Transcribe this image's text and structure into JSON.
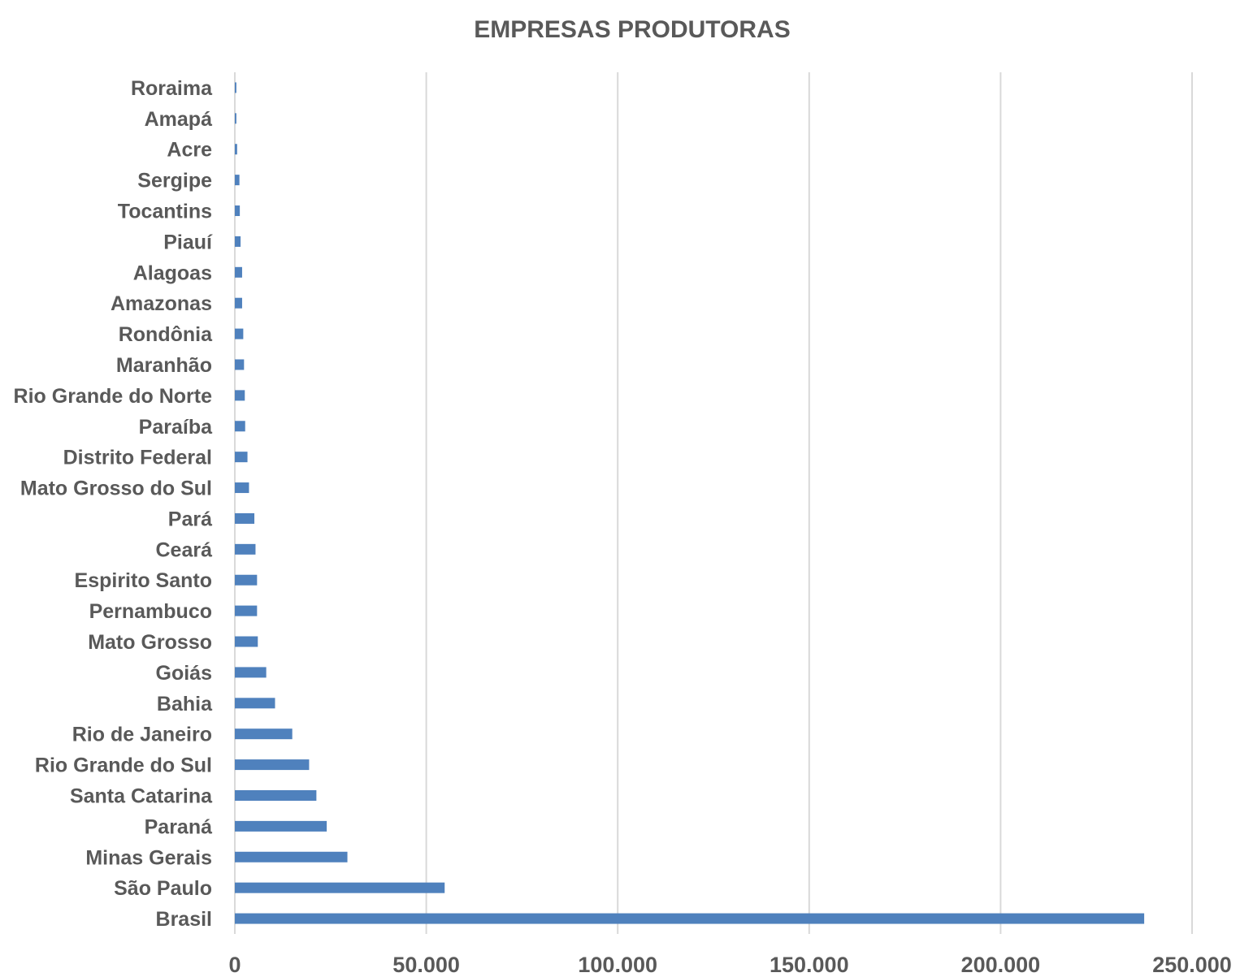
{
  "chart_data": {
    "type": "bar",
    "orientation": "horizontal",
    "title": "EMPRESAS PRODUTORAS",
    "xlabel": "",
    "ylabel": "",
    "categories": [
      "Brasil",
      "São Paulo",
      "Minas Gerais",
      "Paraná",
      "Santa Catarina",
      "Rio Grande do Sul",
      "Rio de Janeiro",
      "Bahia",
      "Goiás",
      "Mato Grosso",
      "Pernambuco",
      "Espirito Santo",
      "Ceará",
      "Pará",
      "Mato Grosso do Sul",
      "Distrito Federal",
      "Paraíba",
      "Rio Grande do Norte",
      "Maranhão",
      "Rondônia",
      "Amazonas",
      "Alagoas",
      "Piauí",
      "Tocantins",
      "Sergipe",
      "Acre",
      "Amapá",
      "Roraima"
    ],
    "values": [
      237500,
      54800,
      29400,
      24000,
      21300,
      19400,
      15000,
      10500,
      8200,
      6000,
      5800,
      5800,
      5400,
      5100,
      3700,
      3300,
      2700,
      2600,
      2400,
      2200,
      1900,
      1900,
      1500,
      1300,
      1200,
      600,
      400,
      400
    ],
    "xlim": [
      0,
      250000
    ],
    "xticks": [
      "0",
      "50.000",
      "100.000",
      "150.000",
      "200.000",
      "250.000"
    ],
    "xtick_values": [
      0,
      50000,
      100000,
      150000,
      200000,
      250000
    ],
    "grid": true,
    "legend": "none",
    "bar_color": "#4f81bd"
  }
}
